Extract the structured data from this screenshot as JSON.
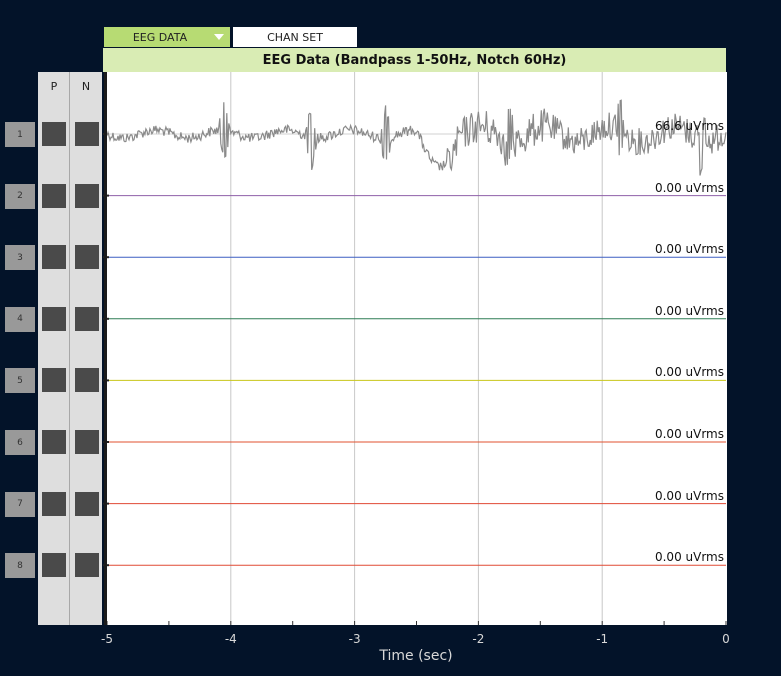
{
  "tabs": {
    "eeg_data": "EEG DATA",
    "chan_set": "CHAN SET"
  },
  "header": {
    "title": "EEG Data (Bandpass 1-50Hz, Notch 60Hz)"
  },
  "columns": {
    "p": "P",
    "n": "N"
  },
  "channels": [
    {
      "num": "1",
      "rms": "66.6 uVrms",
      "color": "#8a8a8a"
    },
    {
      "num": "2",
      "rms": "0.00 uVrms",
      "color": "#8e5fa8"
    },
    {
      "num": "3",
      "rms": "0.00 uVrms",
      "color": "#3d5fc2"
    },
    {
      "num": "4",
      "rms": "0.00 uVrms",
      "color": "#2f7d55"
    },
    {
      "num": "5",
      "rms": "0.00 uVrms",
      "color": "#c8c61a"
    },
    {
      "num": "6",
      "rms": "0.00 uVrms",
      "color": "#e0522f"
    },
    {
      "num": "7",
      "rms": "0.00 uVrms",
      "color": "#e04a35"
    },
    {
      "num": "8",
      "rms": "0.00 uVrms",
      "color": "#e04a35"
    }
  ],
  "chart_data": {
    "type": "line",
    "xlabel": "Time (sec)",
    "xlim": [
      -5,
      0
    ],
    "x_ticks": [
      "-5",
      "-4",
      "-3",
      "-2",
      "-1",
      "0"
    ],
    "series": [
      {
        "name": "1",
        "rms": "66.6 uVrms"
      },
      {
        "name": "2",
        "rms": "0.00 uVrms"
      },
      {
        "name": "3",
        "rms": "0.00 uVrms"
      },
      {
        "name": "4",
        "rms": "0.00 uVrms"
      },
      {
        "name": "5",
        "rms": "0.00 uVrms"
      },
      {
        "name": "6",
        "rms": "0.00 uVrms"
      },
      {
        "name": "7",
        "rms": "0.00 uVrms"
      },
      {
        "name": "8",
        "rms": "0.00 uVrms"
      }
    ]
  }
}
